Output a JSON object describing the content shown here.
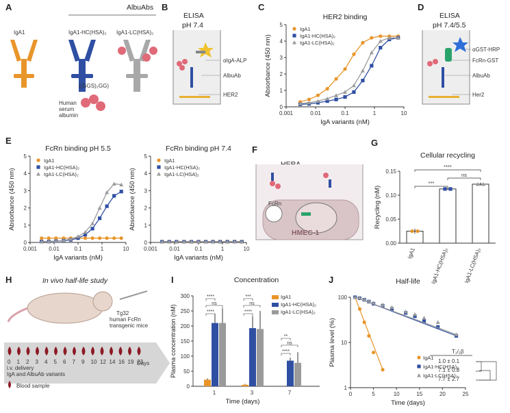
{
  "colors": {
    "iga1": "#e8952a",
    "hc": "#2f4fa3",
    "lc": "#9a9a9a",
    "red": "#d6495a",
    "gold": "#e8b030",
    "green": "#2aa36b",
    "drop": "#8b1a24"
  },
  "panelA": {
    "label": "A",
    "albuabs": "AlbuAbs",
    "iga1": "IgA1",
    "hc": "IgA1-HC(HSA)₂",
    "lc": "IgA1-LC(HSA)₂",
    "linker": "((GGS)₂GG)",
    "hsa": [
      "Human",
      "serum",
      "albumin"
    ]
  },
  "panelB": {
    "label": "B",
    "title": [
      "ELISA",
      "pH 7.4"
    ],
    "labels": [
      "αIgA-ALP",
      "AlbuAb",
      "HER2"
    ]
  },
  "panelC": {
    "label": "C",
    "title": "HER2 binding"
  },
  "panelD": {
    "label": "D",
    "title": [
      "ELISA",
      "pH 7.4/5.5"
    ],
    "labels": [
      "αGST-HRP",
      "FcRn-GST",
      "AlbuAb",
      "Her2"
    ]
  },
  "panelE": {
    "label": "E"
  },
  "panelF": {
    "label": "F",
    "title": "HERA",
    "fcrn": "FcRn",
    "cell": "HMEC-1"
  },
  "panelG": {
    "label": "G"
  },
  "panelH": {
    "label": "H",
    "title": "In vivo half-life study",
    "mouse": [
      "Tg32",
      "human FcRn",
      "transgenic mice"
    ],
    "days": [
      "0",
      "1",
      "2",
      "3",
      "4",
      "5",
      "6",
      "7",
      "9",
      "10",
      "12",
      "14",
      "16",
      "19",
      "23"
    ],
    "days_label": "Days",
    "delivery": [
      "i.v. delivery",
      "IgA and AlbuAb variants"
    ],
    "blood": "Blood sample"
  },
  "panelI": {
    "label": "I"
  },
  "panelJ": {
    "label": "J",
    "t_half": "T₁/₂β",
    "halflives": [
      "1.0 ± 0.1",
      "7.1 ± 0.8",
      "7.7 ± 2.7"
    ]
  },
  "chart_data": [
    {
      "id": "C",
      "type": "line",
      "title": "HER2 binding",
      "xlabel": "IgA variants (nM)",
      "ylabel": "Absorbance (450 nm)",
      "xscale": "log",
      "xlim": [
        0.001,
        10
      ],
      "ylim": [
        0,
        5
      ],
      "xticks": [
        "0.001",
        "0.01",
        "0.1",
        "1",
        "10"
      ],
      "yticks": [
        "0",
        "1",
        "2",
        "3",
        "4",
        "5"
      ],
      "x": [
        0.003,
        0.006,
        0.012,
        0.025,
        0.05,
        0.1,
        0.2,
        0.4,
        0.8,
        1.6,
        3.2,
        6.4
      ],
      "series": [
        {
          "name": "IgA1",
          "values": [
            0.3,
            0.45,
            0.7,
            1.1,
            1.7,
            2.3,
            3.2,
            3.9,
            4.2,
            4.3,
            4.3,
            4.3
          ]
        },
        {
          "name": "IgA1-HC(HSA)₂",
          "values": [
            0.15,
            0.18,
            0.25,
            0.35,
            0.45,
            0.6,
            0.9,
            1.6,
            2.5,
            3.6,
            4.1,
            4.2
          ]
        },
        {
          "name": "IgA1-LC(HSA)₂",
          "values": [
            0.2,
            0.25,
            0.35,
            0.5,
            0.7,
            0.9,
            1.3,
            2.2,
            3.3,
            4.0,
            4.2,
            4.2
          ]
        }
      ],
      "legend": "top-left"
    },
    {
      "id": "E1",
      "type": "line",
      "title": "FcRn binding pH 5.5",
      "xlabel": "IgA variants (nM)",
      "ylabel": "Absorbance (450 nm)",
      "xscale": "log",
      "xlim": [
        0.001,
        10
      ],
      "ylim": [
        0,
        5
      ],
      "xticks": [
        "0.001",
        "0.01",
        "0.1",
        "1",
        "10"
      ],
      "yticks": [
        "0",
        "1",
        "2",
        "3",
        "4",
        "5"
      ],
      "x": [
        0.003,
        0.006,
        0.012,
        0.025,
        0.05,
        0.1,
        0.2,
        0.4,
        0.8,
        1.6,
        3.2,
        6.4
      ],
      "series": [
        {
          "name": "IgA1",
          "values": [
            0.25,
            0.25,
            0.25,
            0.25,
            0.25,
            0.25,
            0.25,
            0.25,
            0.25,
            0.25,
            0.25,
            0.25
          ]
        },
        {
          "name": "IgA1-HC(HSA)₂",
          "values": [
            0.05,
            0.05,
            0.07,
            0.1,
            0.15,
            0.25,
            0.45,
            0.8,
            1.4,
            2.1,
            2.7,
            2.95
          ]
        },
        {
          "name": "IgA1-LC(HSA)₂",
          "values": [
            0.05,
            0.06,
            0.08,
            0.12,
            0.2,
            0.35,
            0.6,
            1.1,
            2.0,
            2.9,
            3.4,
            3.35
          ]
        }
      ],
      "legend": "top-left"
    },
    {
      "id": "E2",
      "type": "line",
      "title": "FcRn binding pH 7.4",
      "xlabel": "IgA variants (nM)",
      "ylabel": "Absorbance (450 nm)",
      "xscale": "log",
      "xlim": [
        0.001,
        10
      ],
      "ylim": [
        0,
        5
      ],
      "xticks": [
        "0.001",
        "0.01",
        "0.1",
        "1",
        "10"
      ],
      "yticks": [
        "0",
        "1",
        "2",
        "3",
        "4",
        "5"
      ],
      "x": [
        0.003,
        0.006,
        0.012,
        0.025,
        0.05,
        0.1,
        0.2,
        0.4,
        0.8,
        1.6,
        3.2,
        6.4
      ],
      "series": [
        {
          "name": "IgA1",
          "values": [
            0.05,
            0.05,
            0.05,
            0.05,
            0.05,
            0.05,
            0.05,
            0.05,
            0.05,
            0.05,
            0.05,
            0.05
          ]
        },
        {
          "name": "IgA1-HC(HSA)₂",
          "values": [
            0.04,
            0.04,
            0.04,
            0.04,
            0.04,
            0.04,
            0.04,
            0.04,
            0.04,
            0.04,
            0.04,
            0.04
          ]
        },
        {
          "name": "IgA1-LC(HSA)₂",
          "values": [
            0.04,
            0.04,
            0.04,
            0.04,
            0.04,
            0.04,
            0.04,
            0.04,
            0.04,
            0.04,
            0.04,
            0.04
          ]
        }
      ],
      "legend": "top-left"
    },
    {
      "id": "G",
      "type": "bar",
      "title": "Cellular recycling",
      "ylabel": "Recycling (nM)",
      "ylim": [
        0,
        0.15
      ],
      "yticks": [
        "0.00",
        "0.05",
        "0.10",
        "0.15"
      ],
      "categories": [
        "IgA1",
        "IgA1-HC(HSA)₂",
        "IgA1-LC(HSA)₂"
      ],
      "values": [
        0.025,
        0.113,
        0.123
      ],
      "errors": [
        0.005,
        0.002,
        0.003
      ],
      "significance": [
        {
          "pair": [
            0,
            1
          ],
          "label": "***"
        },
        {
          "pair": [
            1,
            2
          ],
          "label": "ns"
        },
        {
          "pair": [
            0,
            2
          ],
          "label": "****"
        }
      ]
    },
    {
      "id": "I",
      "type": "bar",
      "title": "Concentration",
      "xlabel": "Time (days)",
      "ylabel": "Plasma concentration (nM)",
      "ylim": [
        0,
        300
      ],
      "yticks": [
        "0",
        "50",
        "100",
        "150",
        "200",
        "250",
        "300"
      ],
      "categories": [
        "1",
        "3",
        "7"
      ],
      "series": [
        {
          "name": "IgA1",
          "values": [
            22,
            5,
            0
          ],
          "errors": [
            4,
            3,
            0
          ]
        },
        {
          "name": "IgA1-HC(HSA)₂",
          "values": [
            210,
            193,
            85
          ],
          "errors": [
            30,
            40,
            10
          ]
        },
        {
          "name": "IgA1-LC(HSA)₂",
          "values": [
            210,
            190,
            78
          ],
          "errors": [
            50,
            60,
            35
          ]
        }
      ],
      "significance": [
        {
          "group": 0,
          "labels": [
            "****",
            "ns",
            "****"
          ]
        },
        {
          "group": 1,
          "labels": [
            "***",
            "ns",
            "****"
          ]
        },
        {
          "group": 2,
          "labels": [
            "**",
            "ns",
            "****"
          ]
        }
      ],
      "legend": "top-right"
    },
    {
      "id": "J",
      "type": "scatter",
      "title": "Half-life",
      "xlabel": "Time (days)",
      "ylabel": "Plasma level (%)",
      "yscale": "log",
      "xlim": [
        0,
        25
      ],
      "ylim": [
        1,
        100
      ],
      "xticks": [
        "0",
        "5",
        "10",
        "15",
        "20",
        "25"
      ],
      "yticks": [
        "1",
        "10",
        "100"
      ],
      "series": [
        {
          "name": "IgA1",
          "x": [
            1,
            2,
            3,
            4,
            5,
            7
          ],
          "y": [
            100,
            55,
            28,
            14,
            6,
            2.5
          ]
        },
        {
          "name": "IgA1-HC(HSA)₂",
          "x": [
            1,
            2,
            3,
            4,
            5,
            7,
            9,
            12,
            14,
            16,
            19,
            23
          ],
          "y": [
            100,
            95,
            88,
            80,
            72,
            65,
            55,
            45,
            38,
            30,
            22,
            14
          ]
        },
        {
          "name": "IgA1-LC(HSA)₂",
          "x": [
            1,
            2,
            3,
            4,
            5,
            7,
            9,
            12,
            14,
            16,
            19,
            23
          ],
          "y": [
            100,
            98,
            90,
            82,
            75,
            68,
            60,
            48,
            42,
            35,
            28,
            15
          ]
        }
      ],
      "legend": "bottom-right"
    }
  ]
}
